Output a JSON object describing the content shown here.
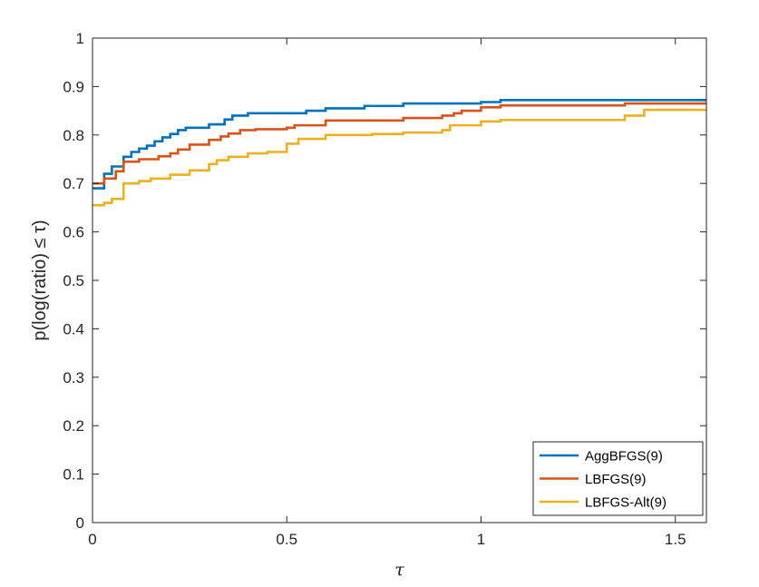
{
  "chart_data": {
    "type": "line",
    "xlabel": "τ",
    "ylabel": "p(log(ratio) ≤ τ)",
    "xlim": [
      0,
      1.58
    ],
    "ylim": [
      0,
      1
    ],
    "xticks": [
      "0",
      "0.5",
      "1",
      "1.5"
    ],
    "xtick_values": [
      0,
      0.5,
      1,
      1.5
    ],
    "yticks": [
      "0",
      "0.1",
      "0.2",
      "0.3",
      "0.4",
      "0.5",
      "0.6",
      "0.7",
      "0.8",
      "0.9",
      "1"
    ],
    "ytick_values": [
      0,
      0.1,
      0.2,
      0.3,
      0.4,
      0.5,
      0.6,
      0.7,
      0.8,
      0.9,
      1.0
    ],
    "grid": false,
    "legend_position": "bottom-right",
    "series": [
      {
        "name": "AggBFGS(9)",
        "color": "#0072BD",
        "step": true,
        "x": [
          0,
          0.03,
          0.05,
          0.08,
          0.1,
          0.12,
          0.14,
          0.16,
          0.18,
          0.2,
          0.22,
          0.24,
          0.3,
          0.34,
          0.36,
          0.4,
          0.55,
          0.6,
          0.7,
          0.8,
          1.0,
          1.05,
          1.58
        ],
        "y": [
          0.69,
          0.72,
          0.735,
          0.755,
          0.765,
          0.772,
          0.778,
          0.787,
          0.795,
          0.802,
          0.81,
          0.815,
          0.822,
          0.832,
          0.84,
          0.845,
          0.85,
          0.855,
          0.86,
          0.865,
          0.868,
          0.872,
          0.872
        ]
      },
      {
        "name": "LBFGS(9)",
        "color": "#D95319",
        "step": true,
        "x": [
          0,
          0.03,
          0.06,
          0.08,
          0.12,
          0.17,
          0.2,
          0.22,
          0.25,
          0.3,
          0.33,
          0.35,
          0.38,
          0.42,
          0.5,
          0.52,
          0.6,
          0.8,
          0.9,
          0.93,
          0.95,
          1.0,
          1.05,
          1.37,
          1.58
        ],
        "y": [
          0.7,
          0.71,
          0.725,
          0.745,
          0.75,
          0.756,
          0.762,
          0.77,
          0.78,
          0.79,
          0.797,
          0.803,
          0.81,
          0.812,
          0.815,
          0.82,
          0.83,
          0.835,
          0.84,
          0.845,
          0.85,
          0.857,
          0.861,
          0.865,
          0.865
        ]
      },
      {
        "name": "LBFGS-Alt(9)",
        "color": "#EDB120",
        "step": true,
        "x": [
          0,
          0.03,
          0.05,
          0.08,
          0.12,
          0.15,
          0.2,
          0.25,
          0.3,
          0.32,
          0.35,
          0.4,
          0.45,
          0.5,
          0.53,
          0.6,
          0.72,
          0.8,
          0.9,
          0.92,
          1.0,
          1.05,
          1.37,
          1.42,
          1.58
        ],
        "y": [
          0.655,
          0.66,
          0.668,
          0.7,
          0.705,
          0.71,
          0.718,
          0.727,
          0.74,
          0.748,
          0.755,
          0.762,
          0.765,
          0.782,
          0.792,
          0.8,
          0.802,
          0.805,
          0.81,
          0.82,
          0.828,
          0.831,
          0.84,
          0.852,
          0.852
        ]
      }
    ]
  }
}
